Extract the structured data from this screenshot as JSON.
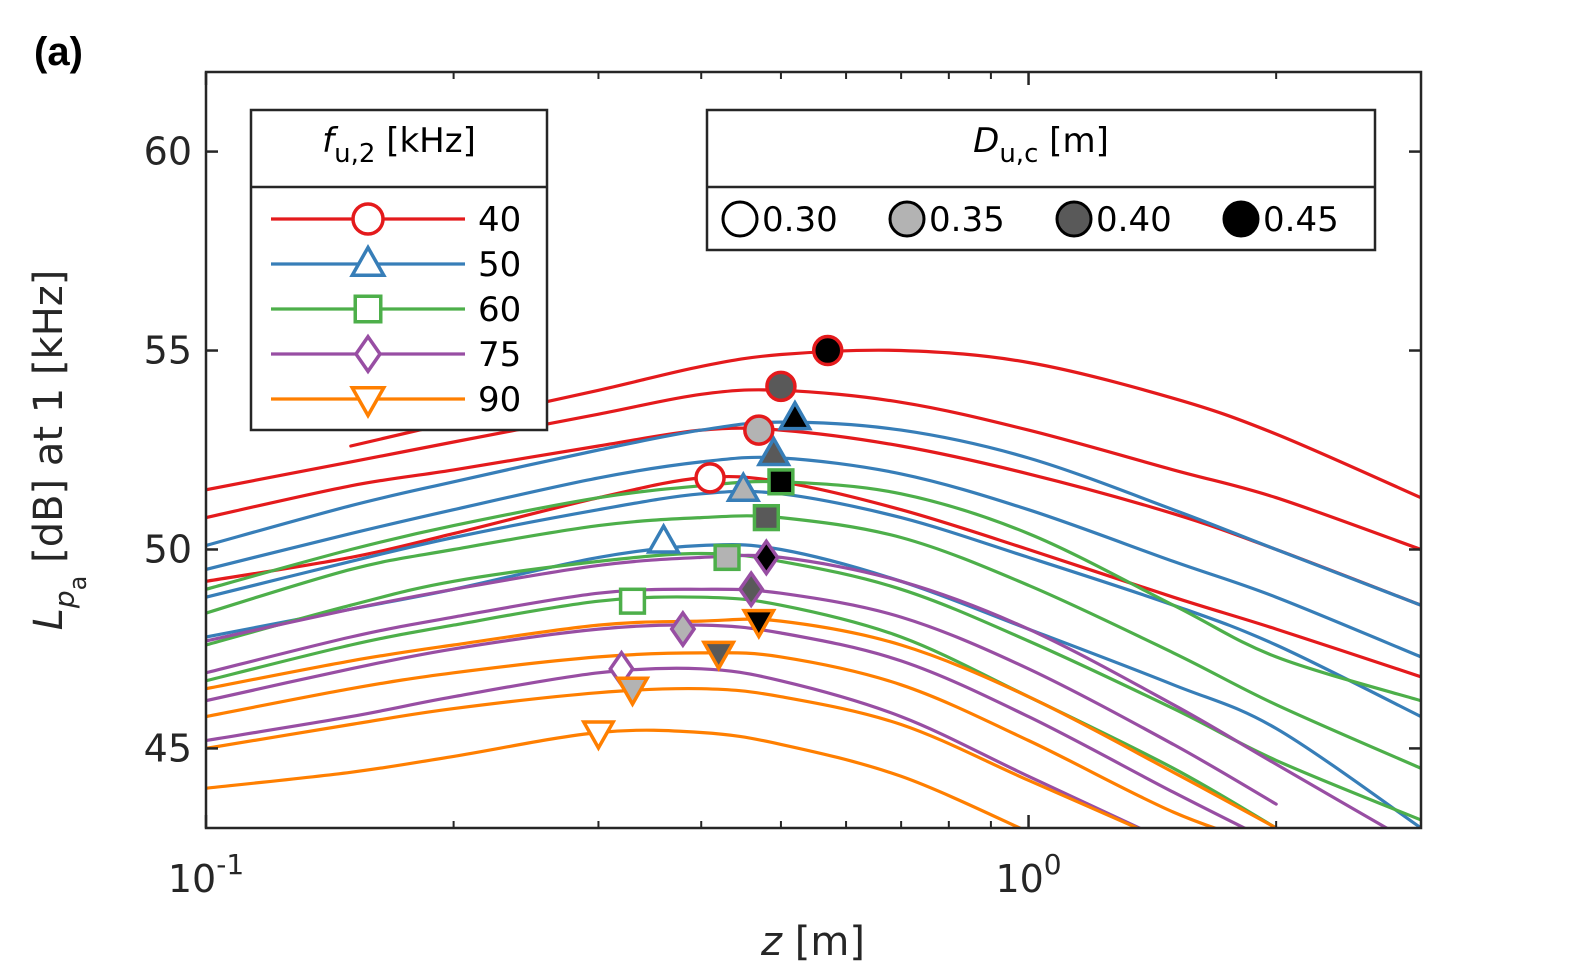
{
  "panel_label": "(a)",
  "chart_data": {
    "type": "line",
    "xscale": "log",
    "xlim": [
      0.1,
      3.0
    ],
    "ylim": [
      43,
      62
    ],
    "grid": false,
    "xlabel": {
      "var": "z",
      "unit": " [m]"
    },
    "ylabel": {
      "var": "L",
      "sub": "p",
      "subsub": "a",
      "unit": " [dB] at 1 [kHz]"
    },
    "xticks": [
      {
        "value": 0.1,
        "base": "10",
        "exp": "-1"
      },
      {
        "value": 1.0,
        "base": "10",
        "exp": "0"
      }
    ],
    "yticks": [
      45,
      50,
      55,
      60
    ],
    "legend_freq": {
      "title_var": "f",
      "title_sub": "u,2",
      "title_unit": " [kHz]",
      "placement": "top-left",
      "entries": [
        {
          "label": "40",
          "color": "#e41a1c",
          "marker": "circle"
        },
        {
          "label": "50",
          "color": "#377eb8",
          "marker": "triangle-up"
        },
        {
          "label": "60",
          "color": "#4daf4a",
          "marker": "square"
        },
        {
          "label": "75",
          "color": "#984ea3",
          "marker": "diamond"
        },
        {
          "label": "90",
          "color": "#ff7f00",
          "marker": "triangle-down"
        }
      ]
    },
    "legend_diam": {
      "title_var": "D",
      "title_sub": "u,c",
      "title_unit": " [m]",
      "placement": "top-right",
      "entries": [
        {
          "label": "0.30",
          "fill": "#ffffff"
        },
        {
          "label": "0.35",
          "fill": "#b3b3b3"
        },
        {
          "label": "0.40",
          "fill": "#595959"
        },
        {
          "label": "0.45",
          "fill": "#000000"
        }
      ]
    },
    "series": [
      {
        "freq": "40",
        "diam": "0.30",
        "color": "#e41a1c",
        "fill": "#ffffff",
        "marker": "circle",
        "x": [
          0.1,
          0.15,
          0.2,
          0.3,
          0.4,
          0.5,
          0.7,
          1.0,
          1.5,
          2.0,
          3.0
        ],
        "y": [
          49.2,
          49.8,
          50.4,
          51.3,
          51.8,
          51.7,
          51.0,
          50.0,
          48.8,
          48.0,
          46.8
        ],
        "peak": [
          0.41,
          51.8
        ]
      },
      {
        "freq": "40",
        "diam": "0.35",
        "color": "#e41a1c",
        "fill": "#b3b3b3",
        "marker": "circle",
        "x": [
          0.1,
          0.15,
          0.2,
          0.3,
          0.4,
          0.5,
          0.7,
          1.0,
          1.5,
          2.0,
          3.0
        ],
        "y": [
          50.8,
          51.6,
          52.0,
          52.6,
          53.0,
          53.0,
          52.6,
          51.9,
          50.9,
          50.0,
          48.6
        ],
        "peak": [
          0.47,
          53.0
        ]
      },
      {
        "freq": "40",
        "diam": "0.40",
        "color": "#e41a1c",
        "fill": "#595959",
        "marker": "circle",
        "x": [
          0.1,
          0.15,
          0.2,
          0.3,
          0.4,
          0.5,
          0.7,
          1.0,
          1.5,
          2.0,
          3.0
        ],
        "y": [
          51.5,
          52.2,
          52.7,
          53.4,
          53.9,
          54.0,
          53.7,
          53.0,
          52.0,
          51.3,
          50.0
        ],
        "peak": [
          0.5,
          54.1
        ]
      },
      {
        "freq": "40",
        "diam": "0.45",
        "color": "#e41a1c",
        "fill": "#000000",
        "marker": "circle",
        "x": [
          0.1,
          0.15,
          0.2,
          0.3,
          0.4,
          0.5,
          0.7,
          1.0,
          1.5,
          2.0,
          3.0
        ],
        "y": [
          null,
          52.6,
          53.2,
          54.0,
          54.6,
          54.9,
          55.0,
          54.7,
          53.8,
          52.9,
          51.3
        ],
        "peak": [
          0.57,
          55.0
        ]
      },
      {
        "freq": "50",
        "diam": "0.30",
        "color": "#377eb8",
        "fill": "#ffffff",
        "marker": "triangle-up",
        "x": [
          0.1,
          0.15,
          0.2,
          0.3,
          0.4,
          0.5,
          0.7,
          1.0,
          1.5,
          2.0,
          3.0
        ],
        "y": [
          47.8,
          48.5,
          49.0,
          49.8,
          50.1,
          50.0,
          49.2,
          48.0,
          46.6,
          45.5,
          43.0
        ],
        "peak": [
          0.36,
          50.2
        ]
      },
      {
        "freq": "50",
        "diam": "0.35",
        "color": "#377eb8",
        "fill": "#b3b3b3",
        "marker": "triangle-up",
        "x": [
          0.1,
          0.15,
          0.2,
          0.3,
          0.4,
          0.5,
          0.7,
          1.0,
          1.5,
          2.0,
          3.0
        ],
        "y": [
          48.8,
          49.7,
          50.3,
          51.0,
          51.4,
          51.4,
          50.8,
          49.8,
          48.6,
          47.6,
          45.8
        ],
        "peak": [
          0.45,
          51.5
        ]
      },
      {
        "freq": "50",
        "diam": "0.40",
        "color": "#377eb8",
        "fill": "#595959",
        "marker": "triangle-up",
        "x": [
          0.1,
          0.15,
          0.2,
          0.3,
          0.4,
          0.5,
          0.7,
          1.0,
          1.5,
          2.0,
          3.0
        ],
        "y": [
          49.5,
          50.4,
          51.0,
          51.8,
          52.2,
          52.3,
          51.9,
          51.0,
          49.7,
          48.8,
          47.3
        ],
        "peak": [
          0.49,
          52.4
        ]
      },
      {
        "freq": "50",
        "diam": "0.45",
        "color": "#377eb8",
        "fill": "#000000",
        "marker": "triangle-up",
        "x": [
          0.1,
          0.15,
          0.2,
          0.3,
          0.4,
          0.5,
          0.7,
          1.0,
          1.5,
          2.0,
          3.0
        ],
        "y": [
          50.1,
          51.1,
          51.7,
          52.5,
          53.0,
          53.2,
          53.0,
          52.3,
          51.0,
          50.0,
          48.6
        ],
        "peak": [
          0.52,
          53.3
        ]
      },
      {
        "freq": "60",
        "diam": "0.30",
        "color": "#4daf4a",
        "fill": "#ffffff",
        "marker": "square",
        "x": [
          0.1,
          0.15,
          0.2,
          0.3,
          0.4,
          0.5,
          0.7,
          1.0,
          1.5,
          2.0,
          3.0
        ],
        "y": [
          46.7,
          47.6,
          48.1,
          48.7,
          48.8,
          48.6,
          47.8,
          46.3,
          44.5,
          43.0,
          null
        ],
        "peak": [
          0.33,
          48.7
        ]
      },
      {
        "freq": "60",
        "diam": "0.35",
        "color": "#4daf4a",
        "fill": "#b3b3b3",
        "marker": "square",
        "x": [
          0.1,
          0.15,
          0.2,
          0.3,
          0.4,
          0.5,
          0.7,
          1.0,
          1.5,
          2.0,
          3.0
        ],
        "y": [
          47.6,
          48.6,
          49.2,
          49.7,
          49.9,
          49.7,
          49.0,
          47.7,
          46.0,
          44.7,
          43.2
        ],
        "peak": [
          0.43,
          49.8
        ]
      },
      {
        "freq": "60",
        "diam": "0.40",
        "color": "#4daf4a",
        "fill": "#595959",
        "marker": "square",
        "x": [
          0.1,
          0.15,
          0.2,
          0.3,
          0.4,
          0.5,
          0.7,
          1.0,
          1.5,
          2.0,
          3.0
        ],
        "y": [
          48.4,
          49.5,
          50.0,
          50.6,
          50.8,
          50.8,
          50.3,
          49.1,
          47.4,
          46.1,
          44.5
        ],
        "peak": [
          0.48,
          50.8
        ]
      },
      {
        "freq": "60",
        "diam": "0.45",
        "color": "#4daf4a",
        "fill": "#000000",
        "marker": "square",
        "x": [
          0.1,
          0.15,
          0.2,
          0.3,
          0.4,
          0.5,
          0.7,
          1.0,
          1.5,
          2.0,
          3.0
        ],
        "y": [
          49.0,
          50.0,
          50.6,
          51.3,
          51.6,
          51.7,
          51.4,
          50.4,
          48.6,
          47.3,
          46.2
        ],
        "peak": [
          0.5,
          51.7
        ]
      },
      {
        "freq": "75",
        "diam": "0.30",
        "color": "#984ea3",
        "fill": "#ffffff",
        "marker": "diamond",
        "x": [
          0.1,
          0.15,
          0.2,
          0.3,
          0.4,
          0.5,
          0.7,
          1.0,
          1.5,
          2.0,
          3.0
        ],
        "y": [
          45.2,
          45.8,
          46.3,
          46.9,
          47.0,
          46.7,
          45.8,
          44.3,
          42.6,
          null,
          null
        ],
        "peak": [
          0.32,
          47.0
        ]
      },
      {
        "freq": "75",
        "diam": "0.35",
        "color": "#984ea3",
        "fill": "#b3b3b3",
        "marker": "diamond",
        "x": [
          0.1,
          0.15,
          0.2,
          0.3,
          0.4,
          0.5,
          0.7,
          1.0,
          1.5,
          2.0,
          3.0
        ],
        "y": [
          46.2,
          47.0,
          47.5,
          48.0,
          48.1,
          47.9,
          47.2,
          45.8,
          43.9,
          42.6,
          null
        ],
        "peak": [
          0.38,
          48.0
        ]
      },
      {
        "freq": "75",
        "diam": "0.40",
        "color": "#984ea3",
        "fill": "#595959",
        "marker": "diamond",
        "x": [
          0.1,
          0.15,
          0.2,
          0.3,
          0.4,
          0.5,
          0.7,
          1.0,
          1.5,
          2.0,
          3.0
        ],
        "y": [
          46.9,
          47.8,
          48.3,
          48.9,
          49.0,
          48.9,
          48.3,
          47.0,
          45.1,
          43.6,
          null
        ],
        "peak": [
          0.46,
          49.0
        ]
      },
      {
        "freq": "75",
        "diam": "0.45",
        "color": "#984ea3",
        "fill": "#000000",
        "marker": "diamond",
        "x": [
          0.1,
          0.15,
          0.2,
          0.3,
          0.4,
          0.5,
          0.7,
          1.0,
          1.5,
          2.0,
          3.0
        ],
        "y": [
          47.7,
          48.5,
          49.0,
          49.6,
          49.8,
          49.8,
          49.2,
          48.0,
          46.1,
          44.6,
          42.5
        ],
        "peak": [
          0.48,
          49.8
        ]
      },
      {
        "freq": "90",
        "diam": "0.30",
        "color": "#ff7f00",
        "fill": "#ffffff",
        "marker": "triangle-down",
        "x": [
          0.1,
          0.15,
          0.2,
          0.3,
          0.4,
          0.5,
          0.7,
          1.0,
          1.5,
          2.0,
          3.0
        ],
        "y": [
          44.0,
          44.4,
          44.8,
          45.4,
          45.4,
          45.1,
          44.3,
          42.9,
          null,
          null,
          null
        ],
        "peak": [
          0.3,
          45.4
        ]
      },
      {
        "freq": "90",
        "diam": "0.35",
        "color": "#ff7f00",
        "fill": "#b3b3b3",
        "marker": "triangle-down",
        "x": [
          0.1,
          0.15,
          0.2,
          0.3,
          0.4,
          0.5,
          0.7,
          1.0,
          1.5,
          2.0,
          3.0
        ],
        "y": [
          45.0,
          45.6,
          46.0,
          46.4,
          46.5,
          46.3,
          45.6,
          44.2,
          42.6,
          null,
          null
        ],
        "peak": [
          0.33,
          46.5
        ]
      },
      {
        "freq": "90",
        "diam": "0.40",
        "color": "#ff7f00",
        "fill": "#595959",
        "marker": "triangle-down",
        "x": [
          0.1,
          0.15,
          0.2,
          0.3,
          0.4,
          0.5,
          0.7,
          1.0,
          1.5,
          2.0,
          3.0
        ],
        "y": [
          45.8,
          46.5,
          46.9,
          47.3,
          47.4,
          47.3,
          46.6,
          45.2,
          43.4,
          42.5,
          null
        ],
        "peak": [
          0.42,
          47.4
        ]
      },
      {
        "freq": "90",
        "diam": "0.45",
        "color": "#ff7f00",
        "fill": "#000000",
        "marker": "triangle-down",
        "x": [
          0.1,
          0.15,
          0.2,
          0.3,
          0.4,
          0.5,
          0.7,
          1.0,
          1.5,
          2.0,
          3.0
        ],
        "y": [
          46.5,
          47.2,
          47.6,
          48.1,
          48.2,
          48.2,
          47.6,
          46.3,
          44.4,
          43.0,
          null
        ],
        "peak": [
          0.47,
          48.2
        ]
      }
    ]
  }
}
